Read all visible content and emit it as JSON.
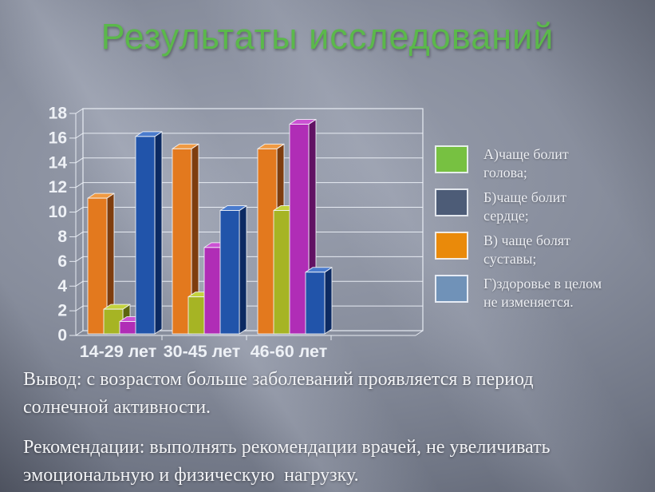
{
  "slide": {
    "title": "Результаты исследований",
    "conclusion_lines": [
      "Вывод: с возрастом больше заболеваний проявляется в период",
      "солнечной активности."
    ],
    "recommendation_lines": [
      "Рекомендации: выполнять рекомендации врачей, не увеличивать",
      "эмоциональную и физическую  нагрузку."
    ]
  },
  "chart_data": {
    "type": "bar",
    "title": "",
    "xlabel": "",
    "ylabel": "",
    "categories": [
      "14-29 лет",
      "30-45 лет",
      "46-60 лет"
    ],
    "series": [
      {
        "name": "orange",
        "color": "#e3791e",
        "top": "#f09a42",
        "side": "#7e3d0e",
        "values": [
          11,
          15,
          15
        ]
      },
      {
        "name": "yellow-green",
        "color": "#a6b424",
        "top": "#c3d23d",
        "side": "#5c660f",
        "values": [
          2,
          3,
          10
        ]
      },
      {
        "name": "magenta",
        "color": "#b02db6",
        "top": "#cb52d3",
        "side": "#611263",
        "values": [
          1,
          7,
          17
        ]
      },
      {
        "name": "blue",
        "color": "#2154aa",
        "top": "#4a7bcd",
        "side": "#0c2a62",
        "values": [
          16,
          10,
          5
        ]
      }
    ],
    "ylim": [
      0,
      18
    ],
    "ytick_labels": [
      0,
      2,
      4,
      6,
      8,
      10,
      12,
      14,
      16,
      18
    ],
    "grid": true,
    "legend_position": "right",
    "legend": [
      {
        "label": "А)чаще болит голова;",
        "lines": [
          "А)чаще болит",
          "голова;"
        ],
        "color": "#77c141"
      },
      {
        "label": "Б)чаще болит сердце;",
        "lines": [
          "Б)чаще болит",
          "сердце;"
        ],
        "color": "#4d5c77"
      },
      {
        "label": "В) чаще болят суставы;",
        "lines": [
          "В) чаще болят",
          "суставы;"
        ],
        "color": "#ea8a0a"
      },
      {
        "label": "Г)здоровье в целом не изменяется.",
        "lines": [
          "Г)здоровье в целом",
          "не изменяется."
        ],
        "color": "#7092b8"
      }
    ]
  }
}
